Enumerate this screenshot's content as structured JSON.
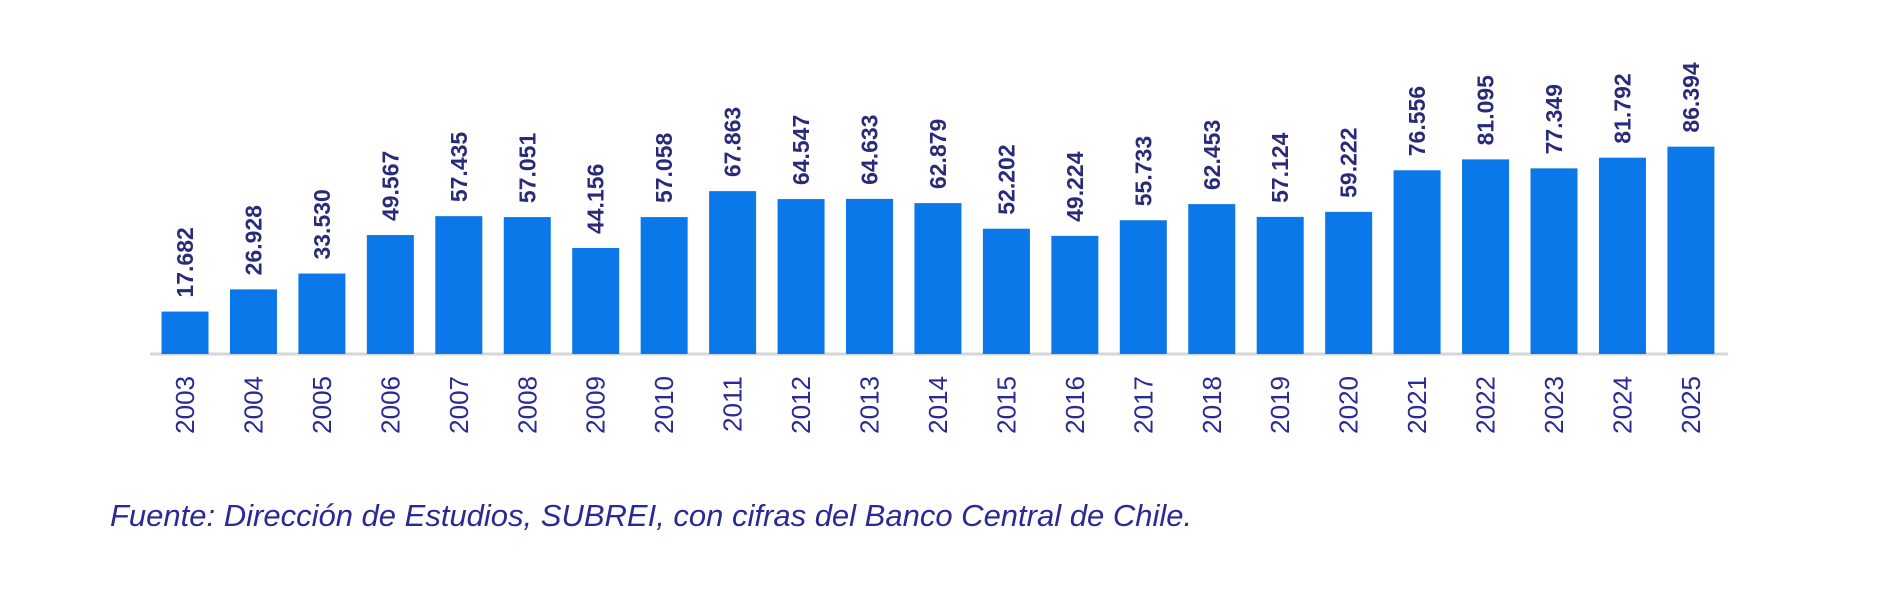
{
  "chart_data": {
    "type": "bar",
    "categories": [
      "2003",
      "2004",
      "2005",
      "2006",
      "2007",
      "2008",
      "2009",
      "2010",
      "2011",
      "2012",
      "2013",
      "2014",
      "2015",
      "2016",
      "2017",
      "2018",
      "2019",
      "2020",
      "2021",
      "2022",
      "2023",
      "2024",
      "2025"
    ],
    "values": [
      17.682,
      26.928,
      33.53,
      49.567,
      57.435,
      57.051,
      44.156,
      57.058,
      67.863,
      64.547,
      64.633,
      62.879,
      52.202,
      49.224,
      55.733,
      62.453,
      57.124,
      59.222,
      76.556,
      81.095,
      77.349,
      81.792,
      86.394
    ],
    "value_labels": [
      "17.682",
      "26.928",
      "33.530",
      "49.567",
      "57.435",
      "57.051",
      "44.156",
      "57.058",
      "67.863",
      "64.547",
      "64.633",
      "62.879",
      "52.202",
      "49.224",
      "55.733",
      "62.453",
      "57.124",
      "59.222",
      "76.556",
      "81.095",
      "77.349",
      "81.792",
      "86.394"
    ],
    "color": "#0a78e8",
    "source": "Fuente: Dirección de Estudios, SUBREI, con cifras del Banco Central de Chile."
  }
}
